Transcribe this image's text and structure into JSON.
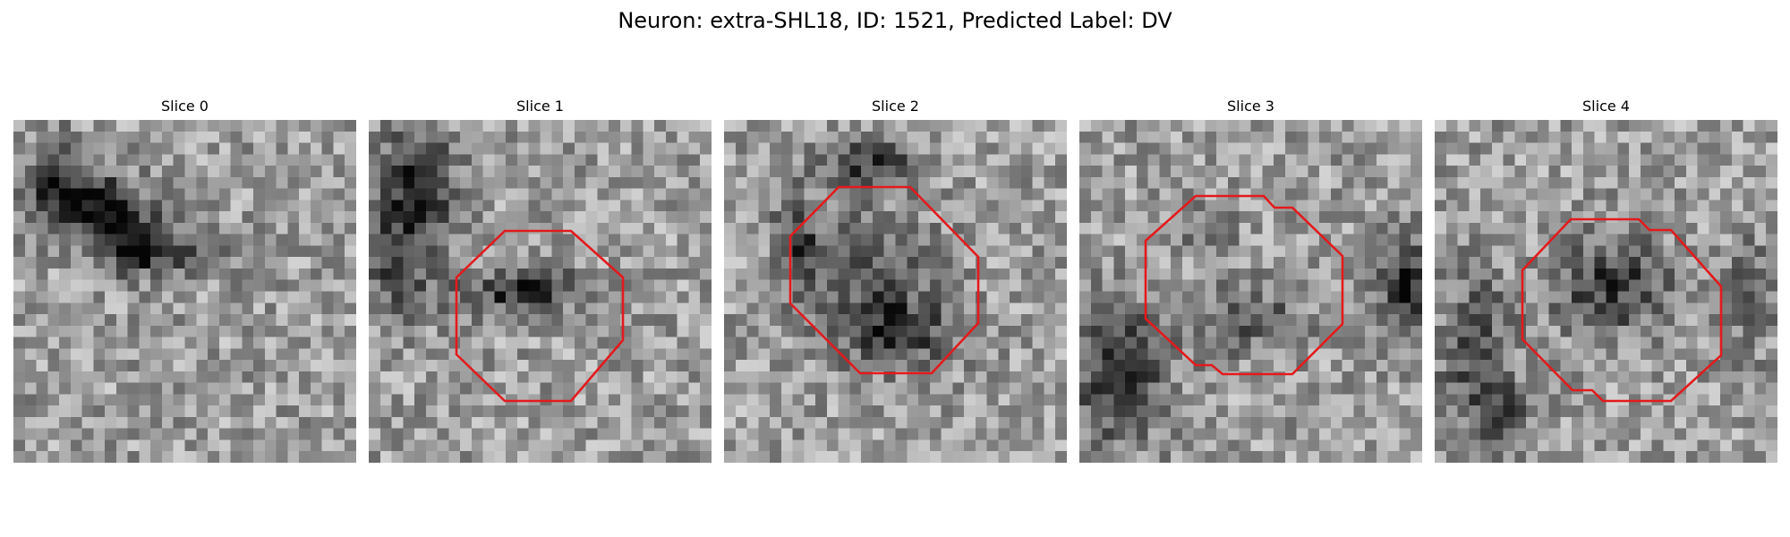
{
  "figure": {
    "title": "Neuron: extra-SHL18, ID: 1521, Predicted Label: DV",
    "outline_color": "#e31a1c",
    "colormap": "grayscale",
    "panels": [
      {
        "title": "Slice 0",
        "has_outline": false
      },
      {
        "title": "Slice 1",
        "has_outline": true
      },
      {
        "title": "Slice 2",
        "has_outline": true
      },
      {
        "title": "Slice 3",
        "has_outline": true
      },
      {
        "title": "Slice 4",
        "has_outline": true
      }
    ]
  }
}
